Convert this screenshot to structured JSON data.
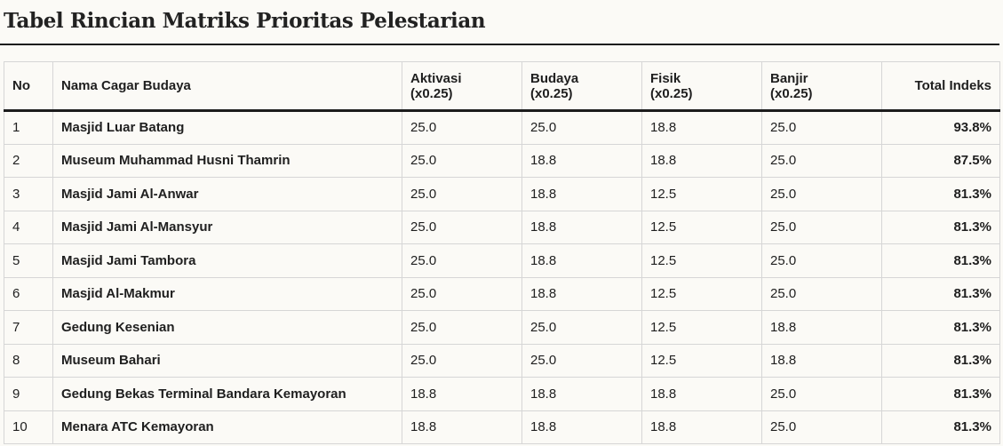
{
  "title": "Tabel Rincian Matriks Prioritas Pelestarian",
  "table": {
    "headers": {
      "no": "No",
      "name": "Nama Cagar Budaya",
      "aktivasi": "Aktivasi",
      "aktivasi_weight": "(x0.25)",
      "budaya": "Budaya",
      "budaya_weight": "(x0.25)",
      "fisik": "Fisik",
      "fisik_weight": "(x0.25)",
      "banjir": "Banjir",
      "banjir_weight": "(x0.25)",
      "total": "Total Indeks"
    },
    "rows": [
      {
        "no": "1",
        "name": "Masjid Luar Batang",
        "aktivasi": "25.0",
        "budaya": "25.0",
        "fisik": "18.8",
        "banjir": "25.0",
        "total": "93.8%"
      },
      {
        "no": "2",
        "name": "Museum Muhammad Husni Thamrin",
        "aktivasi": "25.0",
        "budaya": "18.8",
        "fisik": "18.8",
        "banjir": "25.0",
        "total": "87.5%"
      },
      {
        "no": "3",
        "name": "Masjid Jami Al-Anwar",
        "aktivasi": "25.0",
        "budaya": "18.8",
        "fisik": "12.5",
        "banjir": "25.0",
        "total": "81.3%"
      },
      {
        "no": "4",
        "name": "Masjid Jami Al-Mansyur",
        "aktivasi": "25.0",
        "budaya": "18.8",
        "fisik": "12.5",
        "banjir": "25.0",
        "total": "81.3%"
      },
      {
        "no": "5",
        "name": "Masjid Jami Tambora",
        "aktivasi": "25.0",
        "budaya": "18.8",
        "fisik": "12.5",
        "banjir": "25.0",
        "total": "81.3%"
      },
      {
        "no": "6",
        "name": "Masjid Al-Makmur",
        "aktivasi": "25.0",
        "budaya": "18.8",
        "fisik": "12.5",
        "banjir": "25.0",
        "total": "81.3%"
      },
      {
        "no": "7",
        "name": "Gedung Kesenian",
        "aktivasi": "25.0",
        "budaya": "25.0",
        "fisik": "12.5",
        "banjir": "18.8",
        "total": "81.3%"
      },
      {
        "no": "8",
        "name": "Museum Bahari",
        "aktivasi": "25.0",
        "budaya": "25.0",
        "fisik": "12.5",
        "banjir": "18.8",
        "total": "81.3%"
      },
      {
        "no": "9",
        "name": "Gedung Bekas Terminal Bandara Kemayoran",
        "aktivasi": "18.8",
        "budaya": "18.8",
        "fisik": "18.8",
        "banjir": "25.0",
        "total": "81.3%"
      },
      {
        "no": "10",
        "name": "Menara ATC Kemayoran",
        "aktivasi": "18.8",
        "budaya": "18.8",
        "fisik": "18.8",
        "banjir": "25.0",
        "total": "81.3%"
      }
    ]
  }
}
